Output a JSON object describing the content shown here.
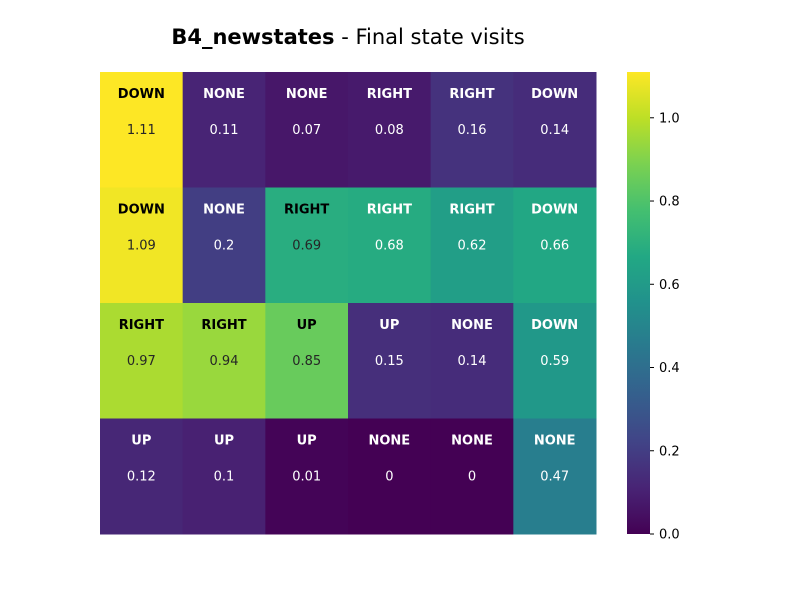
{
  "chart_data": {
    "type": "heatmap",
    "title_bold": "B4_newstates",
    "title_rest": " - Final state visits",
    "rows": 4,
    "cols": 6,
    "actions": [
      [
        "DOWN",
        "NONE",
        "NONE",
        "RIGHT",
        "RIGHT",
        "DOWN"
      ],
      [
        "DOWN",
        "NONE",
        "RIGHT",
        "RIGHT",
        "RIGHT",
        "DOWN"
      ],
      [
        "RIGHT",
        "RIGHT",
        "UP",
        "UP",
        "NONE",
        "DOWN"
      ],
      [
        "UP",
        "UP",
        "UP",
        "NONE",
        "NONE",
        "NONE"
      ]
    ],
    "values": [
      [
        1.11,
        0.11,
        0.07,
        0.08,
        0.16,
        0.14
      ],
      [
        1.09,
        0.2,
        0.69,
        0.68,
        0.62,
        0.66
      ],
      [
        0.97,
        0.94,
        0.85,
        0.15,
        0.14,
        0.59
      ],
      [
        0.12,
        0.1,
        0.01,
        0,
        0,
        0.47
      ]
    ],
    "value_labels": [
      [
        "1.11",
        "0.11",
        "0.07",
        "0.08",
        "0.16",
        "0.14"
      ],
      [
        "1.09",
        "0.2",
        "0.69",
        "0.68",
        "0.62",
        "0.66"
      ],
      [
        "0.97",
        "0.94",
        "0.85",
        "0.15",
        "0.14",
        "0.59"
      ],
      [
        "0.12",
        "0.1",
        "0.01",
        "0",
        "0",
        "0.47"
      ]
    ],
    "colormap": "viridis",
    "vmin": 0,
    "vmax": 1.11,
    "colorbar_ticks": [
      0.0,
      0.2,
      0.4,
      0.6,
      0.8,
      1.0
    ],
    "colorbar_tick_labels": [
      "0.0",
      "0.2",
      "0.4",
      "0.6",
      "0.8",
      "1.0"
    ]
  }
}
